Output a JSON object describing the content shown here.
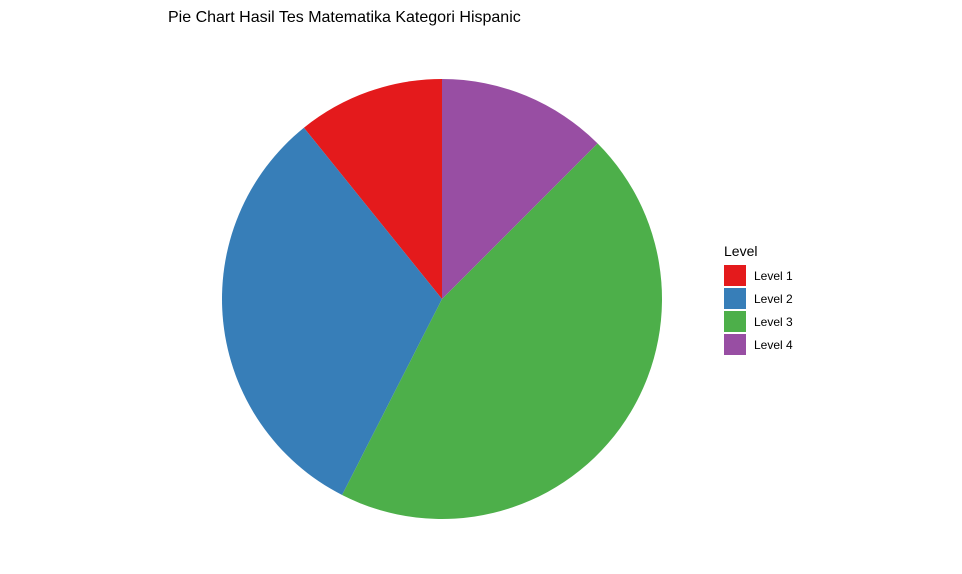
{
  "chart_data": {
    "type": "pie",
    "title": "Pie Chart Hasil Tes Matematika Kategori Hispanic",
    "legend_title": "Level",
    "legend_position": "right",
    "categories": [
      "Level 1",
      "Level 2",
      "Level 3",
      "Level 4"
    ],
    "values": [
      10.8,
      31.7,
      45.0,
      12.5
    ],
    "colors": [
      "#E41A1C",
      "#377EB8",
      "#4DAF4A",
      "#984EA3"
    ],
    "direction": "counterclockwise",
    "start_angle": "top"
  }
}
